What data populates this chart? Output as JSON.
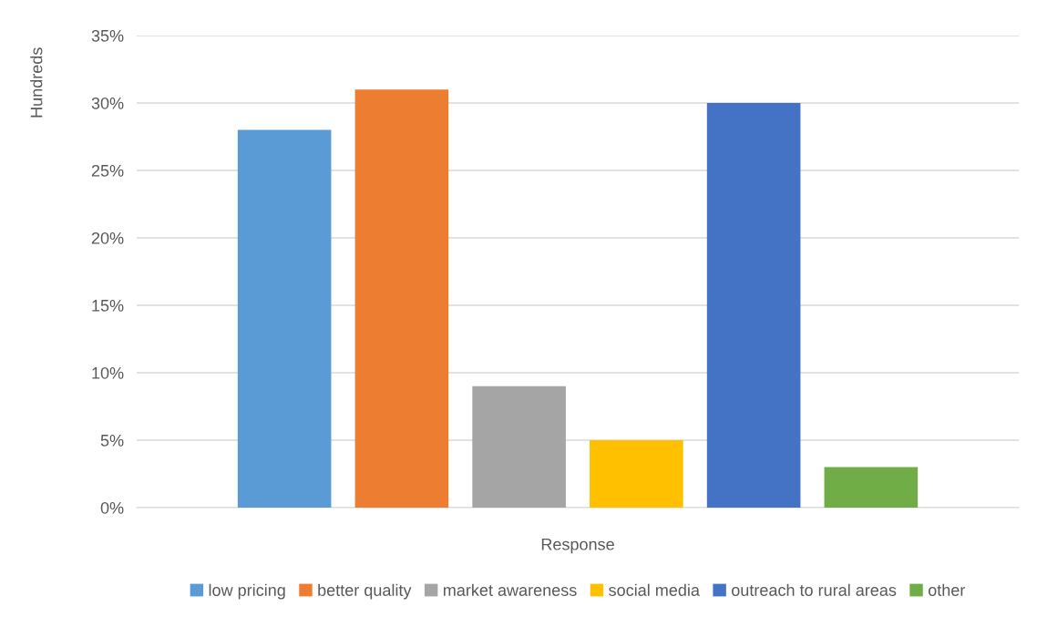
{
  "chart_data": {
    "type": "bar",
    "xlabel": "Response",
    "ylabel": "Hundreds",
    "categories": [
      null
    ],
    "series": [
      {
        "name": "low pricing",
        "color": "#5b9bd5",
        "values": [
          28
        ]
      },
      {
        "name": "better quality",
        "color": "#ed7d31",
        "values": [
          31
        ]
      },
      {
        "name": "market awareness",
        "color": "#a5a5a5",
        "values": [
          9
        ]
      },
      {
        "name": "social media",
        "color": "#ffc000",
        "values": [
          5
        ]
      },
      {
        "name": "outreach to rural areas",
        "color": "#4472c4",
        "values": [
          30
        ]
      },
      {
        "name": "other",
        "color": "#70ad47",
        "values": [
          3
        ]
      }
    ],
    "ylim": [
      0,
      35
    ],
    "yticks": [
      {
        "value": 0,
        "label": "0%"
      },
      {
        "value": 5,
        "label": "5%"
      },
      {
        "value": 10,
        "label": "10%"
      },
      {
        "value": 15,
        "label": "15%"
      },
      {
        "value": 20,
        "label": "20%"
      },
      {
        "value": 25,
        "label": "25%"
      },
      {
        "value": 30,
        "label": "30%"
      },
      {
        "value": 35,
        "label": "35%"
      }
    ],
    "grid": "y",
    "legend": "bottom"
  }
}
